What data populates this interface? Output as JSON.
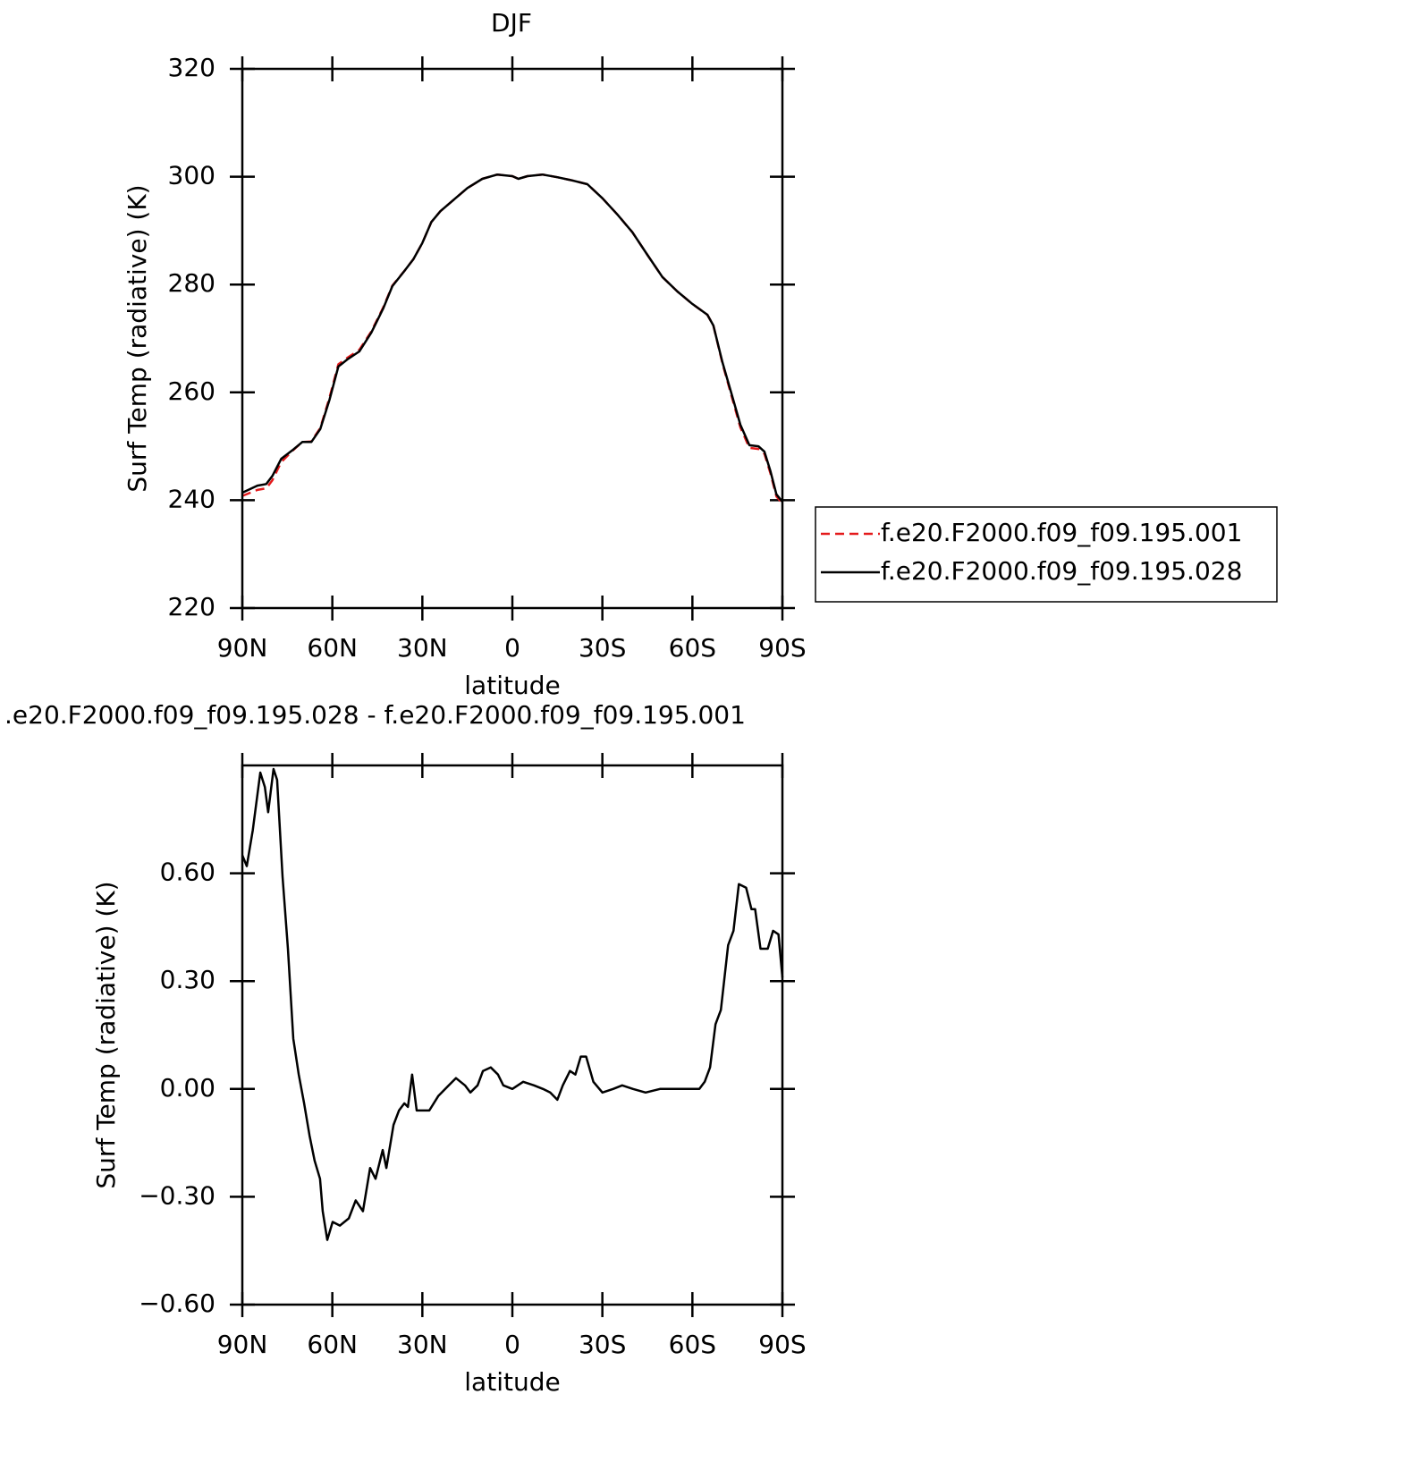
{
  "chart_data": [
    {
      "type": "line",
      "title": "DJF",
      "x_label": "latitude",
      "y_label": "Surf Temp (radiative) (K)",
      "xlim": [
        90,
        -90
      ],
      "xticks": [
        {
          "value": 90,
          "label": "90N"
        },
        {
          "value": 60,
          "label": "60N"
        },
        {
          "value": 30,
          "label": "30N"
        },
        0,
        {
          "value": -30,
          "label": "30S"
        },
        {
          "value": -60,
          "label": "60S"
        },
        {
          "value": -90,
          "label": "90S"
        }
      ],
      "ylim": [
        220,
        320
      ],
      "yticks": [
        220,
        240,
        260,
        280,
        300,
        320
      ],
      "legend": "outside-right",
      "series": [
        {
          "name": "f.e20.F2000.f09_f09.195.001",
          "color": "#e41a1c",
          "style": "dashed",
          "x": [
            90,
            85,
            82,
            80,
            77,
            73,
            70,
            67,
            64,
            61,
            58,
            55,
            51,
            47,
            43,
            40,
            36,
            33,
            30,
            27,
            24,
            20,
            15,
            10,
            5,
            0,
            -2,
            -5,
            -10,
            -15,
            -20,
            -25,
            -30,
            -35,
            -40,
            -45,
            -50,
            -55,
            -60,
            -65,
            -67,
            -70,
            -73,
            -76,
            -79,
            -82,
            -84,
            -86,
            -88,
            -90
          ],
          "values": [
            240.8,
            241.9,
            242.2,
            243.7,
            247.1,
            249.3,
            250.8,
            250.9,
            253.4,
            258.9,
            265.2,
            266.4,
            267.9,
            271.3,
            275.8,
            279.8,
            282.5,
            284.7,
            287.7,
            291.6,
            293.6,
            295.5,
            297.9,
            299.6,
            300.4,
            300.1,
            299.6,
            300.1,
            300.4,
            299.9,
            299.3,
            298.6,
            296.0,
            293.0,
            289.7,
            285.5,
            281.4,
            278.7,
            276.4,
            274.4,
            272.4,
            265.4,
            259.4,
            253.5,
            249.7,
            249.5,
            248.6,
            245.0,
            240.7,
            239.4
          ]
        },
        {
          "name": "f.e20.F2000.f09_f09.195.028",
          "color": "#000000",
          "style": "solid",
          "x": [
            90,
            85,
            82,
            80,
            77,
            73,
            70,
            67,
            64,
            61,
            58,
            55,
            51,
            47,
            43,
            40,
            36,
            33,
            30,
            27,
            24,
            20,
            15,
            10,
            5,
            0,
            -2,
            -5,
            -10,
            -15,
            -20,
            -25,
            -30,
            -35,
            -40,
            -45,
            -50,
            -55,
            -60,
            -65,
            -67,
            -70,
            -73,
            -76,
            -79,
            -82,
            -84,
            -86,
            -88,
            -90
          ],
          "values": [
            241.4,
            242.7,
            243.0,
            244.5,
            247.7,
            249.4,
            250.8,
            250.8,
            253.2,
            258.5,
            264.8,
            266.1,
            267.6,
            271.1,
            275.6,
            279.7,
            282.5,
            284.7,
            287.7,
            291.6,
            293.6,
            295.5,
            297.9,
            299.6,
            300.4,
            300.1,
            299.6,
            300.1,
            300.4,
            299.9,
            299.3,
            298.6,
            296.0,
            293.0,
            289.7,
            285.5,
            281.4,
            278.7,
            276.4,
            274.4,
            272.4,
            265.6,
            259.8,
            254.0,
            250.2,
            250.0,
            249.0,
            245.4,
            241.1,
            239.7
          ]
        }
      ]
    },
    {
      "type": "line",
      "title": ".e20.F2000.f09_f09.195.028 - f.e20.F2000.f09_f09.195.001",
      "x_label": "latitude",
      "y_label": "Surf Temp (radiative) (K)",
      "xlim": [
        90,
        -90
      ],
      "xticks": [
        {
          "value": 90,
          "label": "90N"
        },
        {
          "value": 60,
          "label": "60N"
        },
        {
          "value": 30,
          "label": "30N"
        },
        0,
        {
          "value": -30,
          "label": "30S"
        },
        {
          "value": -60,
          "label": "60S"
        },
        {
          "value": -90,
          "label": "90S"
        }
      ],
      "ylim": [
        -0.6,
        0.9
      ],
      "yticks": [
        {
          "value": -0.6,
          "label": "−0.60"
        },
        {
          "value": -0.3,
          "label": "−0.30"
        },
        {
          "value": 0,
          "label": "0.00"
        },
        {
          "value": 0.3,
          "label": "0.30"
        },
        {
          "value": 0.6,
          "label": "0.60"
        }
      ],
      "series": [
        {
          "color": "#000000",
          "style": "solid",
          "x": [
            90,
            88.5,
            86.5,
            84,
            82.5,
            81.4,
            79.6,
            78.4,
            76.6,
            74.8,
            73,
            71.2,
            69.4,
            67.6,
            65.9,
            64.1,
            63.2,
            61.7,
            59.9,
            57.5,
            54.5,
            52.2,
            49.8,
            47.4,
            45.6,
            43.2,
            42,
            39.6,
            37.8,
            36,
            34.8,
            33.4,
            31.9,
            30.1,
            27.7,
            24.7,
            21.2,
            18.8,
            15.8,
            14,
            11.6,
            9.8,
            7.2,
            4.8,
            3,
            0,
            -3.6,
            -7.2,
            -10.2,
            -12.6,
            -15,
            -16.8,
            -19.2,
            -21,
            -22.8,
            -24.6,
            -27,
            -30,
            -33.6,
            -36.6,
            -40.2,
            -44.4,
            -49.2,
            -56.3,
            -62.3,
            -64.1,
            -65.9,
            -67.7,
            -69.5,
            -71.9,
            -73.7,
            -75.5,
            -77.9,
            -79.7,
            -80.9,
            -82.7,
            -85.1,
            -86.9,
            -88.7,
            -90
          ],
          "values": [
            0.65,
            0.62,
            0.72,
            0.88,
            0.84,
            0.77,
            0.89,
            0.86,
            0.59,
            0.39,
            0.14,
            0.04,
            -0.04,
            -0.13,
            -0.2,
            -0.25,
            -0.34,
            -0.42,
            -0.37,
            -0.38,
            -0.36,
            -0.31,
            -0.34,
            -0.22,
            -0.25,
            -0.17,
            -0.22,
            -0.1,
            -0.06,
            -0.04,
            -0.05,
            0.04,
            -0.06,
            -0.06,
            -0.06,
            -0.02,
            0.01,
            0.03,
            0.01,
            -0.01,
            0.01,
            0.05,
            0.06,
            0.04,
            0.01,
            0.0,
            0.02,
            0.01,
            0.0,
            -0.01,
            -0.03,
            0.01,
            0.05,
            0.04,
            0.09,
            0.09,
            0.02,
            -0.01,
            0.0,
            0.01,
            0.0,
            -0.01,
            0.0,
            0.0,
            0.0,
            0.02,
            0.06,
            0.18,
            0.22,
            0.4,
            0.44,
            0.57,
            0.56,
            0.5,
            0.5,
            0.39,
            0.39,
            0.44,
            0.43,
            0.31
          ]
        }
      ]
    }
  ]
}
